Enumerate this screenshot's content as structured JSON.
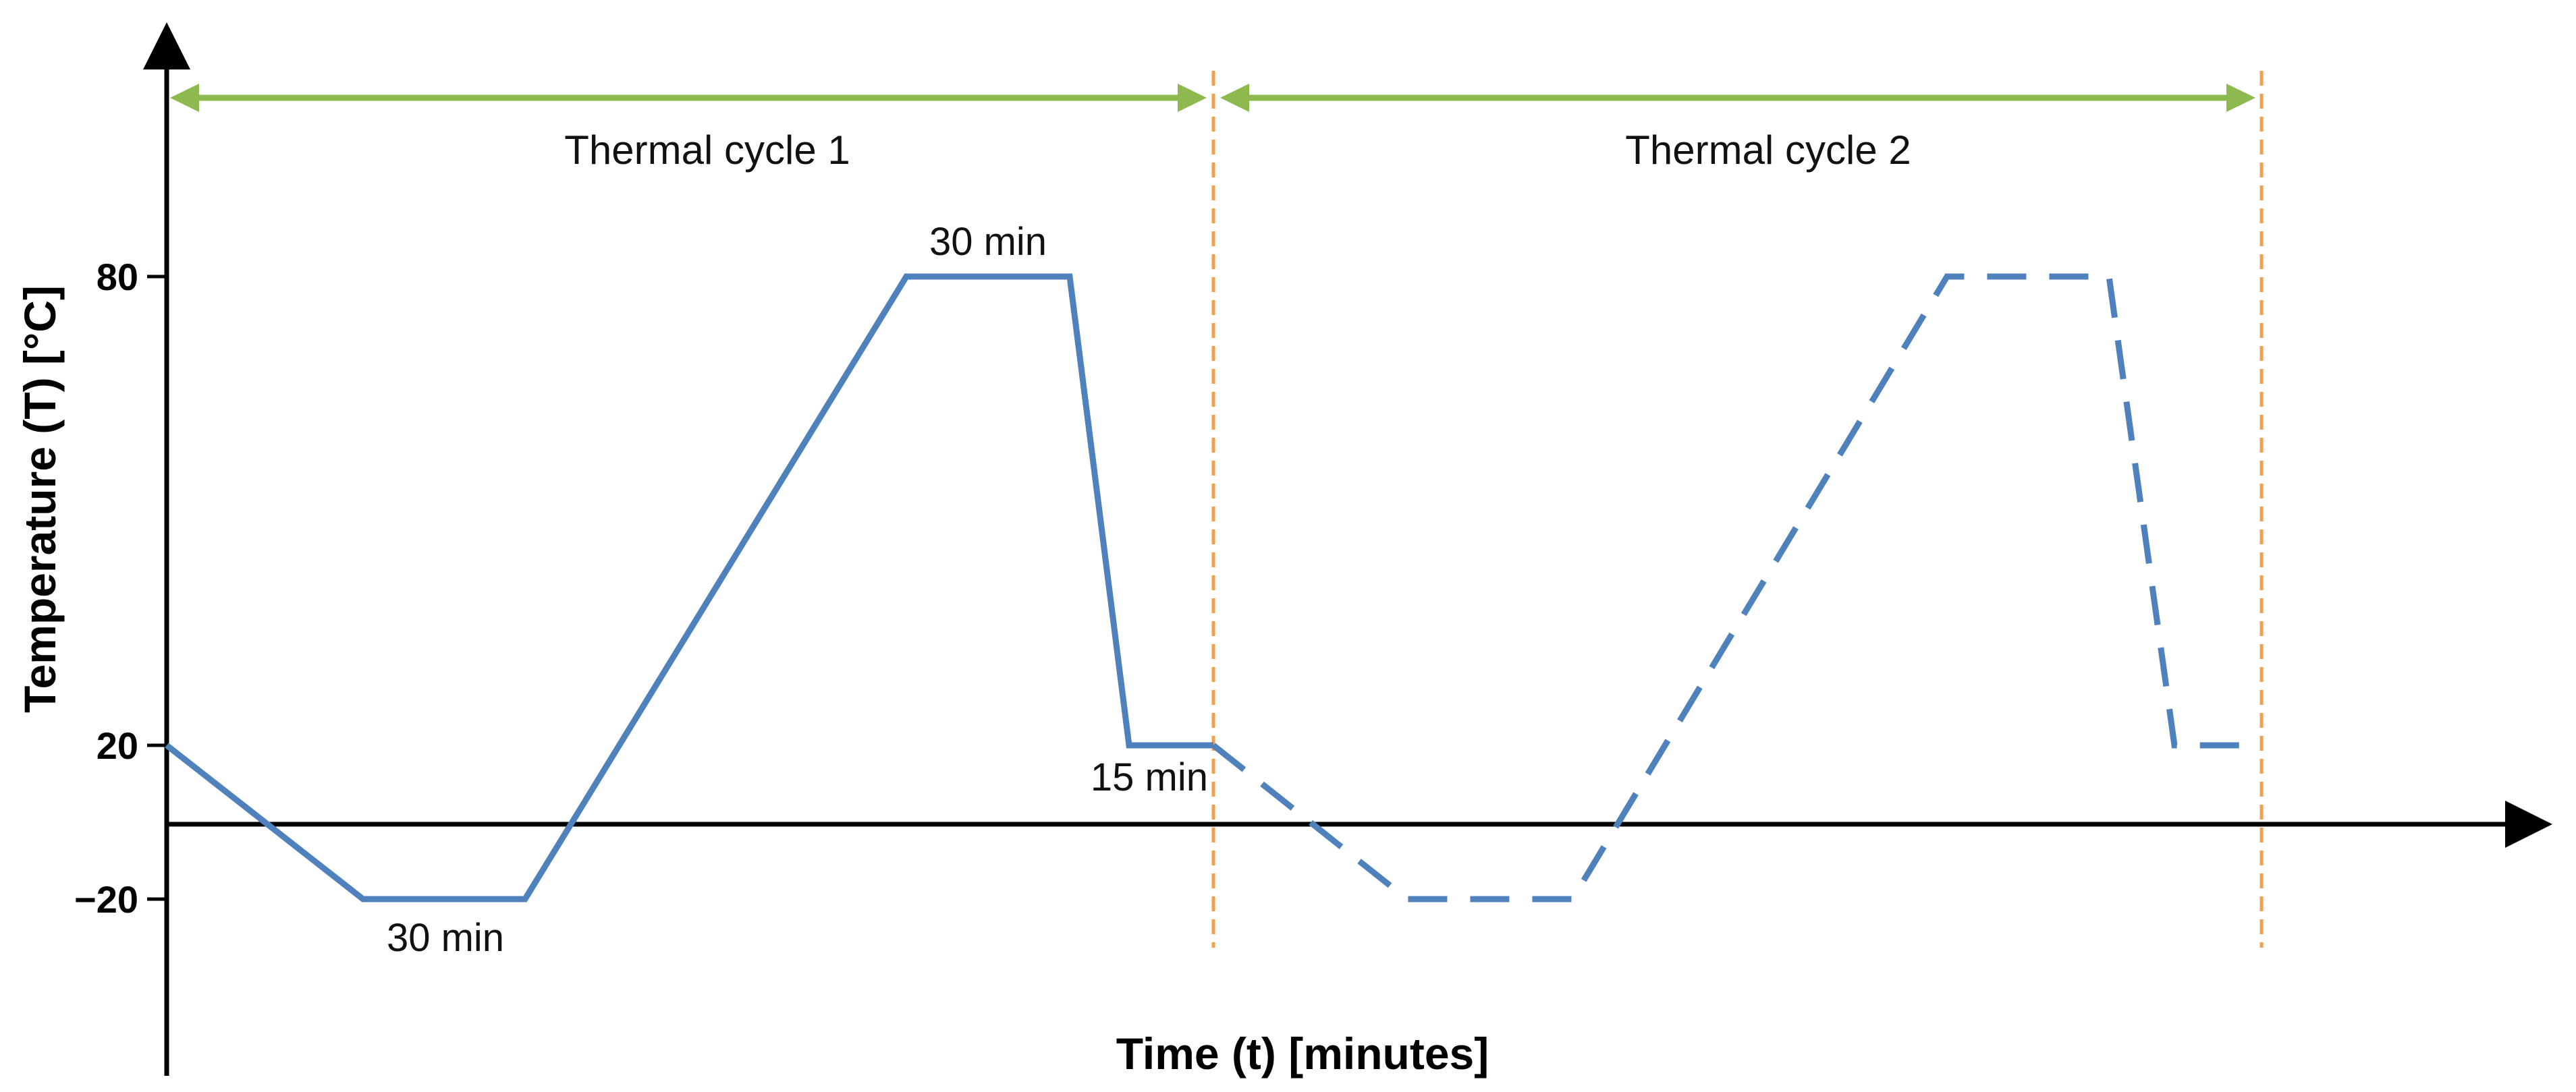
{
  "axes": {
    "xlabel": "Time (t) [minutes]",
    "ylabel": "Temperature (T) [°C]",
    "y_ticks": [
      "80",
      "20",
      "−20"
    ]
  },
  "cycles": {
    "cycle1_label": "Thermal cycle 1",
    "cycle2_label": "Thermal cycle 2"
  },
  "annotations": {
    "hold_cold": "30 min",
    "hold_hot": "30 min",
    "hold_room": "15 min"
  },
  "colors": {
    "profile": "#4f81bd",
    "cycle_arrow": "#8db94f",
    "cycle_boundary": "#f0a050",
    "axis": "#000000"
  },
  "chart_data": {
    "type": "line",
    "y_ticks": [
      80,
      20,
      -20
    ],
    "series": [
      {
        "style": "solid",
        "y": [
          20,
          -20,
          -20,
          80,
          80,
          20,
          20
        ]
      },
      {
        "style": "dashed",
        "y": [
          20,
          -20,
          -20,
          80,
          80,
          20,
          20
        ]
      }
    ]
  }
}
